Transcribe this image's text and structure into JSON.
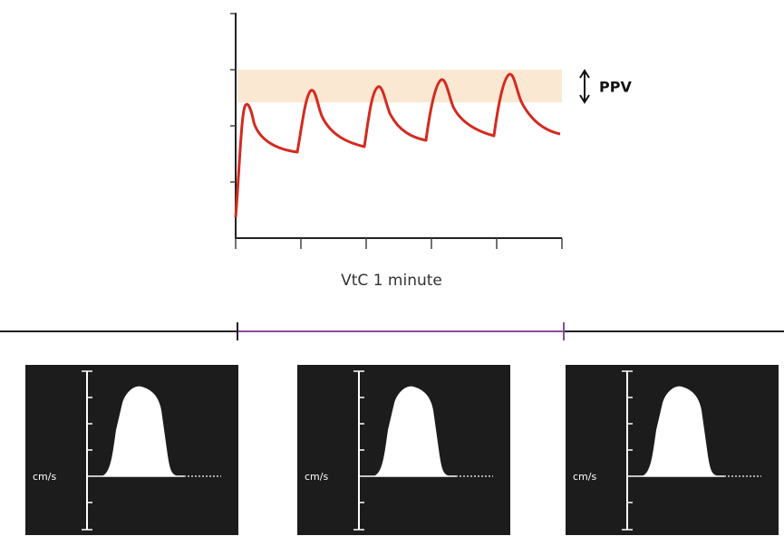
{
  "chart": {
    "band_label": "PPV",
    "x_label": "VtC 1 minute"
  },
  "panels": [
    {
      "unit": "cm/s"
    },
    {
      "unit": "cm/s"
    },
    {
      "unit": "cm/s"
    }
  ]
}
